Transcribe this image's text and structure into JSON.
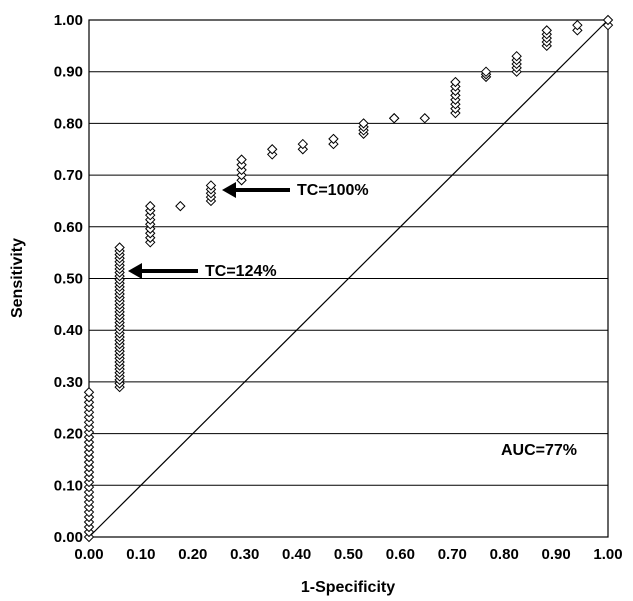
{
  "chart_data": {
    "type": "scatter",
    "title": "",
    "xlabel": "1-Specificity",
    "ylabel": "Sensitivity",
    "xlim": [
      0,
      1
    ],
    "ylim": [
      0,
      1
    ],
    "grid": "horizontal",
    "x_ticks": [
      "0.00",
      "0.10",
      "0.20",
      "0.30",
      "0.40",
      "0.50",
      "0.60",
      "0.70",
      "0.80",
      "0.90",
      "1.00"
    ],
    "y_ticks": [
      "0.00",
      "0.10",
      "0.20",
      "0.30",
      "0.40",
      "0.50",
      "0.60",
      "0.70",
      "0.80",
      "0.90",
      "1.00"
    ],
    "marker": "diamond",
    "reference_line": {
      "from": [
        0,
        0
      ],
      "to": [
        1,
        1
      ]
    },
    "columns": [
      {
        "x": 0.0,
        "y_min": 0.0,
        "y_max": 0.28,
        "n": 30
      },
      {
        "x": 0.059,
        "y_min": 0.29,
        "y_max": 0.56,
        "n": 40
      },
      {
        "x": 0.118,
        "y_min": 0.57,
        "y_max": 0.64,
        "n": 9
      },
      {
        "x": 0.176,
        "y_min": 0.64,
        "y_max": 0.64,
        "n": 1
      },
      {
        "x": 0.235,
        "y_min": 0.65,
        "y_max": 0.68,
        "n": 5
      },
      {
        "x": 0.294,
        "y_min": 0.69,
        "y_max": 0.73,
        "n": 5
      },
      {
        "x": 0.353,
        "y_min": 0.74,
        "y_max": 0.75,
        "n": 2
      },
      {
        "x": 0.412,
        "y_min": 0.75,
        "y_max": 0.76,
        "n": 2
      },
      {
        "x": 0.471,
        "y_min": 0.76,
        "y_max": 0.77,
        "n": 2
      },
      {
        "x": 0.529,
        "y_min": 0.78,
        "y_max": 0.8,
        "n": 4
      },
      {
        "x": 0.588,
        "y_min": 0.81,
        "y_max": 0.81,
        "n": 2
      },
      {
        "x": 0.647,
        "y_min": 0.81,
        "y_max": 0.81,
        "n": 1
      },
      {
        "x": 0.706,
        "y_min": 0.82,
        "y_max": 0.88,
        "n": 8
      },
      {
        "x": 0.765,
        "y_min": 0.89,
        "y_max": 0.9,
        "n": 3
      },
      {
        "x": 0.824,
        "y_min": 0.9,
        "y_max": 0.93,
        "n": 5
      },
      {
        "x": 0.882,
        "y_min": 0.95,
        "y_max": 0.98,
        "n": 5
      },
      {
        "x": 0.941,
        "y_min": 0.98,
        "y_max": 0.99,
        "n": 2
      },
      {
        "x": 1.0,
        "y_min": 0.99,
        "y_max": 1.0,
        "n": 2
      }
    ],
    "annotations": [
      {
        "text": "TC=100%",
        "arrow_to": [
          0.235,
          0.67
        ]
      },
      {
        "text": "TC=124%",
        "arrow_to": [
          0.059,
          0.51
        ]
      },
      {
        "text": "AUC=77%"
      }
    ]
  }
}
